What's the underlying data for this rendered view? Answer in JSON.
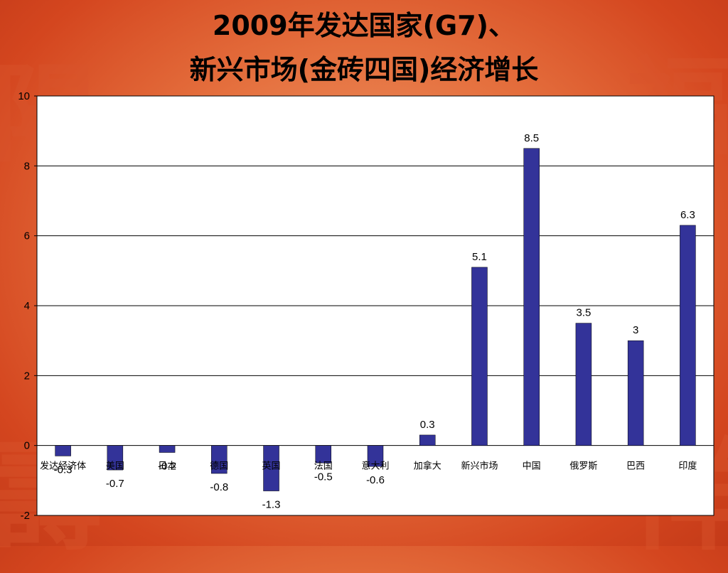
{
  "title": {
    "line1": "2009年发达国家(G7)、",
    "line2": "新兴市场(金砖四国)经济增长"
  },
  "colors": {
    "bar": "#333399",
    "plot_bg": "#ffffff",
    "background": "#e5703e"
  },
  "chart_data": {
    "type": "bar",
    "categories": [
      "发达经济体",
      "美国",
      "日本",
      "德国",
      "英国",
      "法国",
      "意大利",
      "加拿大",
      "新兴市场",
      "中国",
      "俄罗斯",
      "巴西",
      "印度"
    ],
    "values": [
      -0.3,
      -0.7,
      -0.2,
      -0.8,
      -1.3,
      -0.5,
      -0.6,
      0.3,
      5.1,
      8.5,
      3.5,
      3,
      6.3
    ],
    "data_labels": [
      "-0.3",
      "-0.7",
      "-0.2",
      "-0.8",
      "-1.3",
      "-0.5",
      "-0.6",
      "0.3",
      "5.1",
      "8.5",
      "3.5",
      "3",
      "6.3"
    ],
    "y_ticks": [
      "-2",
      "0",
      "2",
      "4",
      "6",
      "8",
      "10"
    ],
    "ylim": [
      -2,
      10
    ],
    "grid": true,
    "legend": "none"
  }
}
